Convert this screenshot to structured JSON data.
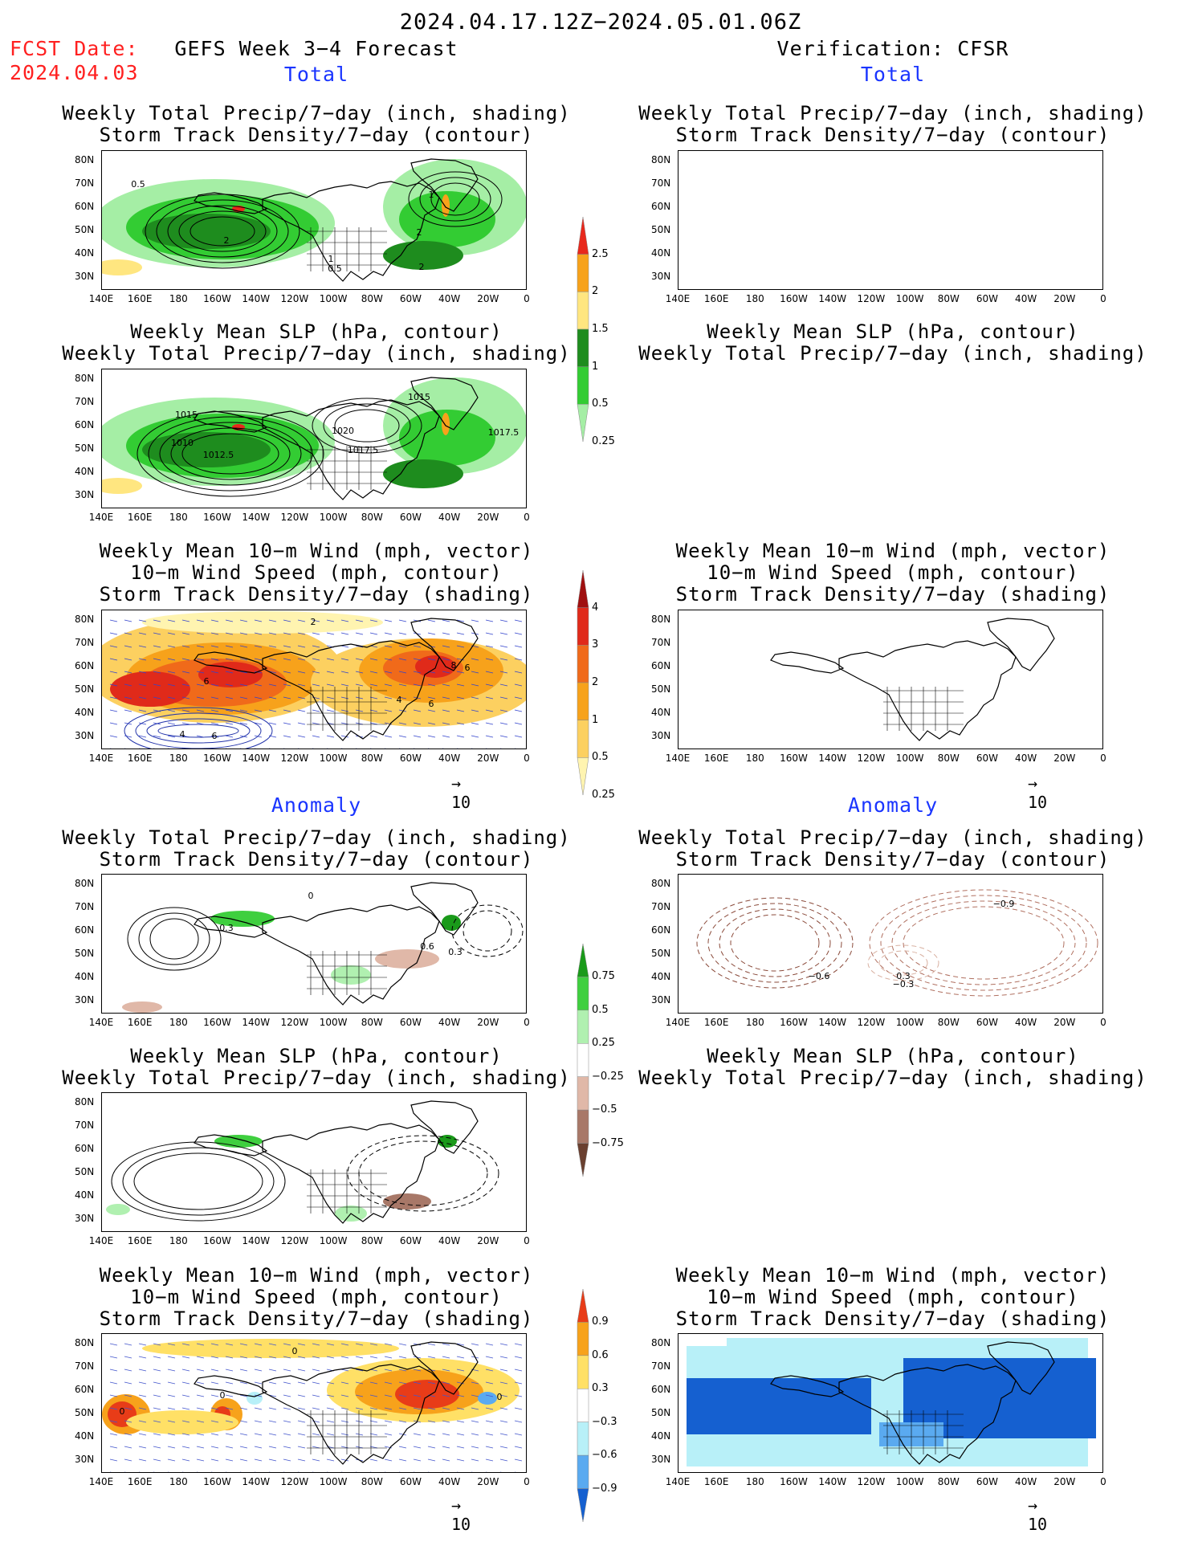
{
  "header": {
    "date_range": "2024.04.17.12Z−2024.05.01.06Z",
    "fcst_label": "FCST Date:",
    "fcst_date": "2024.04.03",
    "left_title": "GEFS Week 3−4 Forecast",
    "right_title": "Verification: CFSR",
    "total_label": "Total",
    "anomaly_label": "Anomaly"
  },
  "titles": {
    "precip_storm": [
      "Weekly Total Precip/7−day (inch, shading)",
      "Storm Track Density/7−day (contour)"
    ],
    "slp_precip": [
      "Weekly Mean SLP (hPa, contour)",
      "Weekly Total Precip/7−day (inch, shading)"
    ],
    "wind": [
      "Weekly Mean 10−m Wind (mph, vector)",
      "10−m Wind Speed (mph, contour)",
      "Storm Track Density/7−day (shading)"
    ]
  },
  "axes": {
    "lat_ticks": [
      "80N",
      "70N",
      "60N",
      "50N",
      "40N",
      "30N"
    ],
    "lon_ticks": [
      "140E",
      "160E",
      "180",
      "160W",
      "140W",
      "120W",
      "100W",
      "80W",
      "60W",
      "40W",
      "20W",
      "0"
    ]
  },
  "vector_ref": "10",
  "colorbars": {
    "precip_total": {
      "labels": [
        "2.5",
        "2",
        "1.5",
        "1",
        "0.5",
        "0.25"
      ],
      "colors": [
        "#e8281c",
        "#f7a21b",
        "#ffe680",
        "#1e8c1e",
        "#33cc33",
        "#a5eea5"
      ]
    },
    "storm_total": {
      "labels": [
        "4",
        "3",
        "2",
        "1",
        "0.5",
        "0.25"
      ],
      "colors": [
        "#a01010",
        "#e02a1a",
        "#f06a1a",
        "#f7a21b",
        "#fcd060",
        "#fff4b0"
      ]
    },
    "precip_anom": {
      "labels": [
        "0.75",
        "0.5",
        "0.25",
        "−0.25",
        "−0.5",
        "−0.75"
      ],
      "colors": [
        "#1a9a1a",
        "#3fcf3f",
        "#b0f0b0",
        "#ffffff",
        "#e0b8a8",
        "#a87868",
        "#6a4030"
      ]
    },
    "storm_anom": {
      "labels": [
        "0.9",
        "0.6",
        "0.3",
        "−0.3",
        "−0.6",
        "−0.9"
      ],
      "colors": [
        "#e83c18",
        "#f7a21b",
        "#ffe066",
        "#ffffff",
        "#b8f0f8",
        "#5aaaf0",
        "#1560d0"
      ]
    }
  },
  "contour_labels": {
    "p1": [
      "0.5",
      "2",
      "2",
      "1",
      "2",
      "0.5",
      "1"
    ],
    "p3": [
      "1015",
      "1010",
      "1012.5",
      "1020",
      "1017.5",
      "1015",
      "1017.5"
    ],
    "p5": [
      "2",
      "6",
      "8",
      "6",
      "4",
      "6",
      "4",
      "6"
    ],
    "p6": [
      "0.3",
      "0.6",
      "0.3",
      "0"
    ],
    "p7": [
      "−0.9",
      "−0.6",
      "−0.3",
      "0.3"
    ],
    "p10": [
      "0",
      "0",
      "0",
      "0"
    ]
  }
}
